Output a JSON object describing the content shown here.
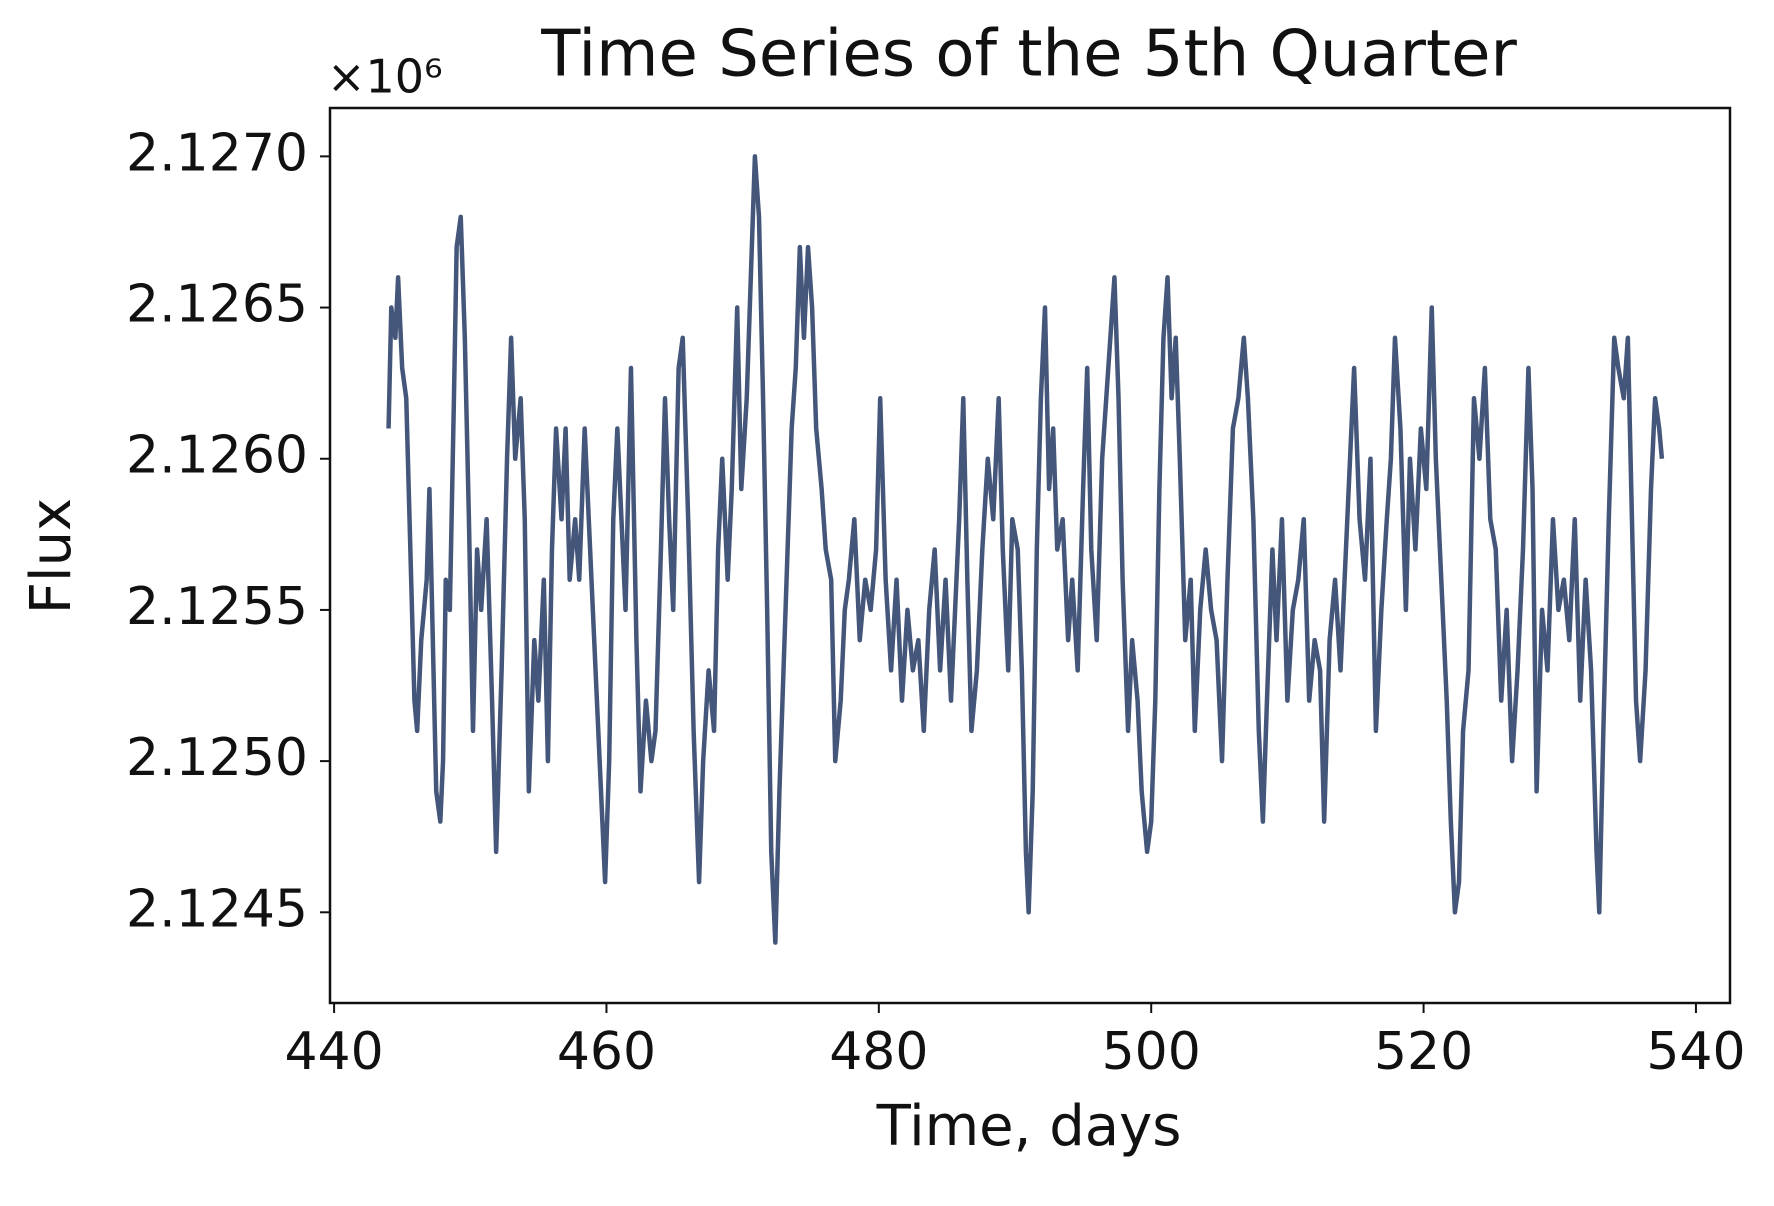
{
  "chart_data": {
    "type": "line",
    "title": "Time Series of the 5th Quarter",
    "xlabel": "Time, days",
    "ylabel": "Flux",
    "y_offset_label": "×10⁶",
    "xlim": [
      439.7,
      542.5
    ],
    "ylim": [
      2.1242,
      2.12716
    ],
    "xticks": [
      440,
      460,
      480,
      500,
      520,
      540
    ],
    "yticks": [
      {
        "value": 2.1245,
        "label": "2.1245"
      },
      {
        "value": 2.125,
        "label": "2.1250"
      },
      {
        "value": 2.1255,
        "label": "2.1255"
      },
      {
        "value": 2.126,
        "label": "2.1260"
      },
      {
        "value": 2.1265,
        "label": "2.1265"
      },
      {
        "value": 2.127,
        "label": "2.1270"
      }
    ],
    "grid": false,
    "series": [
      {
        "color": "#44567a",
        "x": [
          444.0,
          444.2,
          444.5,
          444.7,
          445.0,
          445.3,
          445.6,
          445.9,
          446.1,
          446.4,
          446.8,
          447.0,
          447.3,
          447.5,
          447.8,
          448.0,
          448.2,
          448.5,
          448.8,
          449.0,
          449.3,
          449.6,
          449.9,
          450.2,
          450.5,
          450.8,
          451.2,
          451.6,
          451.9,
          452.3,
          452.7,
          453.0,
          453.3,
          453.7,
          454.0,
          454.3,
          454.7,
          455.0,
          455.4,
          455.7,
          456.0,
          456.3,
          456.7,
          457.0,
          457.3,
          457.7,
          458.0,
          458.4,
          458.8,
          459.2,
          459.6,
          459.9,
          460.2,
          460.5,
          460.8,
          461.1,
          461.4,
          461.8,
          462.2,
          462.5,
          462.9,
          463.3,
          463.6,
          464.0,
          464.3,
          464.6,
          464.9,
          465.3,
          465.6,
          466.0,
          466.4,
          466.8,
          467.1,
          467.5,
          467.9,
          468.2,
          468.5,
          468.9,
          469.2,
          469.6,
          469.9,
          470.3,
          470.6,
          470.9,
          471.2,
          471.5,
          471.8,
          472.1,
          472.4,
          472.7,
          473.0,
          473.3,
          473.6,
          473.9,
          474.2,
          474.5,
          474.8,
          475.1,
          475.4,
          475.8,
          476.1,
          476.5,
          476.8,
          477.2,
          477.5,
          477.8,
          478.2,
          478.6,
          479.0,
          479.4,
          479.8,
          480.1,
          480.5,
          480.9,
          481.3,
          481.7,
          482.1,
          482.5,
          482.9,
          483.3,
          483.7,
          484.1,
          484.5,
          484.9,
          485.3,
          485.6,
          485.9,
          486.2,
          486.5,
          486.8,
          487.2,
          487.6,
          488.0,
          488.4,
          488.8,
          489.1,
          489.5,
          489.8,
          490.2,
          490.5,
          490.8,
          491.0,
          491.3,
          491.6,
          491.9,
          492.2,
          492.5,
          492.8,
          493.1,
          493.5,
          493.9,
          494.2,
          494.6,
          495.0,
          495.3,
          495.6,
          496.0,
          496.4,
          496.7,
          497.0,
          497.3,
          497.6,
          497.9,
          498.3,
          498.6,
          499.0,
          499.3,
          499.7,
          500.0,
          500.3,
          500.6,
          500.9,
          501.2,
          501.5,
          501.8,
          502.1,
          502.5,
          502.9,
          503.2,
          503.6,
          504.0,
          504.4,
          504.8,
          505.2,
          505.6,
          506.0,
          506.4,
          506.8,
          507.1,
          507.5,
          507.9,
          508.2,
          508.5,
          508.9,
          509.2,
          509.6,
          510.0,
          510.4,
          510.8,
          511.2,
          511.6,
          512.0,
          512.4,
          512.7,
          513.1,
          513.5,
          513.9,
          514.3,
          514.6,
          514.9,
          515.3,
          515.7,
          516.1,
          516.5,
          516.9,
          517.3,
          517.6,
          517.9,
          518.3,
          518.7,
          519.0,
          519.4,
          519.8,
          520.2,
          520.6,
          520.9,
          521.3,
          521.7,
          522.0,
          522.3,
          522.6,
          522.9,
          523.3,
          523.7,
          524.1,
          524.5,
          524.9,
          525.3,
          525.7,
          526.1,
          526.5,
          526.9,
          527.3,
          527.7,
          528.0,
          528.3,
          528.7,
          529.1,
          529.5,
          529.9,
          530.3,
          530.7,
          531.1,
          531.5,
          531.9,
          532.3,
          532.7,
          532.9,
          533.2,
          533.6,
          534.0,
          534.3,
          534.7,
          535.0,
          535.3,
          535.6,
          535.9,
          536.3,
          536.7,
          537.0,
          537.3,
          537.5
        ],
        "values": [
          2.1261,
          2.1265,
          2.1264,
          2.1266,
          2.1263,
          2.1262,
          2.1257,
          2.1252,
          2.1251,
          2.1254,
          2.1256,
          2.1259,
          2.1253,
          2.1249,
          2.1248,
          2.125,
          2.1256,
          2.1255,
          2.1262,
          2.1267,
          2.1268,
          2.1264,
          2.1258,
          2.1251,
          2.1257,
          2.1255,
          2.1258,
          2.1252,
          2.1247,
          2.1253,
          2.126,
          2.1264,
          2.126,
          2.1262,
          2.1258,
          2.1249,
          2.1254,
          2.1252,
          2.1256,
          2.125,
          2.1257,
          2.1261,
          2.1258,
          2.1261,
          2.1256,
          2.1258,
          2.1256,
          2.1261,
          2.1257,
          2.1253,
          2.1249,
          2.1246,
          2.125,
          2.1258,
          2.1261,
          2.1258,
          2.1255,
          2.1263,
          2.1254,
          2.1249,
          2.1252,
          2.125,
          2.1251,
          2.1257,
          2.1262,
          2.1258,
          2.1255,
          2.1263,
          2.1264,
          2.1258,
          2.1251,
          2.1246,
          2.125,
          2.1253,
          2.1251,
          2.1257,
          2.126,
          2.1256,
          2.1259,
          2.1265,
          2.1259,
          2.1262,
          2.1266,
          2.127,
          2.1268,
          2.1262,
          2.1255,
          2.1247,
          2.1244,
          2.1249,
          2.1253,
          2.1257,
          2.1261,
          2.1263,
          2.1267,
          2.1264,
          2.1267,
          2.1265,
          2.1261,
          2.1259,
          2.1257,
          2.1256,
          2.125,
          2.1252,
          2.1255,
          2.1256,
          2.1258,
          2.1254,
          2.1256,
          2.1255,
          2.1257,
          2.1262,
          2.1256,
          2.1253,
          2.1256,
          2.1252,
          2.1255,
          2.1253,
          2.1254,
          2.1251,
          2.1255,
          2.1257,
          2.1253,
          2.1256,
          2.1252,
          2.1255,
          2.1258,
          2.1262,
          2.1256,
          2.1251,
          2.1253,
          2.1257,
          2.126,
          2.1258,
          2.1262,
          2.1257,
          2.1253,
          2.1258,
          2.1257,
          2.1253,
          2.1247,
          2.1245,
          2.1249,
          2.1257,
          2.1262,
          2.1265,
          2.1259,
          2.1261,
          2.1257,
          2.1258,
          2.1254,
          2.1256,
          2.1253,
          2.1259,
          2.1263,
          2.1257,
          2.1254,
          2.126,
          2.1262,
          2.1264,
          2.1266,
          2.1262,
          2.1256,
          2.1251,
          2.1254,
          2.1252,
          2.1249,
          2.1247,
          2.1248,
          2.1252,
          2.1259,
          2.1264,
          2.1266,
          2.1262,
          2.1264,
          2.126,
          2.1254,
          2.1256,
          2.1251,
          2.1255,
          2.1257,
          2.1255,
          2.1254,
          2.125,
          2.1256,
          2.1261,
          2.1262,
          2.1264,
          2.1262,
          2.1258,
          2.1251,
          2.1248,
          2.1252,
          2.1257,
          2.1254,
          2.1258,
          2.1252,
          2.1255,
          2.1256,
          2.1258,
          2.1252,
          2.1254,
          2.1253,
          2.1248,
          2.1254,
          2.1256,
          2.1253,
          2.1257,
          2.126,
          2.1263,
          2.1258,
          2.1256,
          2.126,
          2.1251,
          2.1255,
          2.1258,
          2.126,
          2.1264,
          2.1261,
          2.1255,
          2.126,
          2.1257,
          2.1261,
          2.1259,
          2.1265,
          2.126,
          2.1256,
          2.1252,
          2.1248,
          2.1245,
          2.1246,
          2.1251,
          2.1253,
          2.1262,
          2.126,
          2.1263,
          2.1258,
          2.1257,
          2.1252,
          2.1255,
          2.125,
          2.1253,
          2.1257,
          2.1263,
          2.1259,
          2.1249,
          2.1255,
          2.1253,
          2.1258,
          2.1255,
          2.1256,
          2.1254,
          2.1258,
          2.1252,
          2.1256,
          2.1253,
          2.1247,
          2.1245,
          2.1251,
          2.1258,
          2.1264,
          2.1263,
          2.1262,
          2.1264,
          2.1258,
          2.1252,
          2.125,
          2.1253,
          2.1259,
          2.1262,
          2.1261,
          2.126
        ]
      }
    ]
  }
}
